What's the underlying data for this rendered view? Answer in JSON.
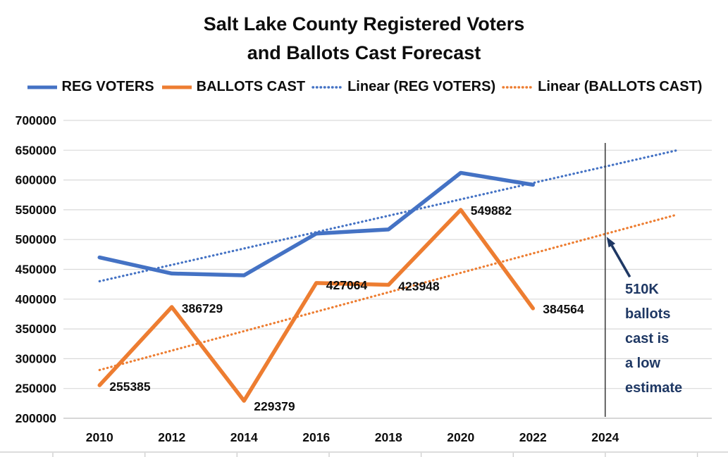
{
  "title": {
    "line1": "Salt Lake County Registered Voters",
    "line2": "and Ballots Cast Forecast"
  },
  "legend": [
    {
      "label": "REG VOTERS",
      "color": "#4472C4",
      "style": "solid"
    },
    {
      "label": "BALLOTS CAST",
      "color": "#ED7D31",
      "style": "solid"
    },
    {
      "label": "Linear (REG VOTERS)",
      "color": "#4472C4",
      "style": "dotted"
    },
    {
      "label": "Linear (BALLOTS CAST)",
      "color": "#ED7D31",
      "style": "dotted"
    }
  ],
  "annotation": {
    "text": "510K\nballots\ncast is\na low\nestimate",
    "color": "#1F3864"
  },
  "chart_data": {
    "type": "line",
    "categories": [
      2010,
      2012,
      2014,
      2016,
      2018,
      2020,
      2022,
      2024
    ],
    "series": [
      {
        "name": "REG VOTERS",
        "color": "#4472C4",
        "values": [
          470000,
          443000,
          440000,
          510000,
          517000,
          612000,
          592000
        ],
        "data_labels": false
      },
      {
        "name": "BALLOTS CAST",
        "color": "#ED7D31",
        "values": [
          255385,
          386729,
          229379,
          427064,
          423948,
          549882,
          384564
        ],
        "data_labels": true
      }
    ],
    "trendlines": [
      {
        "name": "Linear (REG VOTERS)",
        "color": "#4472C4",
        "x_start": 2010,
        "x_end": 2026,
        "value_start": 430000,
        "value_end": 650000
      },
      {
        "name": "Linear (BALLOTS CAST)",
        "color": "#ED7D31",
        "x_start": 2010,
        "x_end": 2026,
        "value_start": 281000,
        "value_end": 542000
      }
    ],
    "vertical_marker": {
      "x": 2024,
      "color": "#404040"
    },
    "yticks": [
      200000,
      250000,
      300000,
      350000,
      400000,
      450000,
      500000,
      550000,
      600000,
      650000,
      700000
    ],
    "ylim": [
      200000,
      700000
    ],
    "ytick_step": 50000,
    "grid": true,
    "legend_position": "top",
    "grid_color": "#D9D9D9",
    "axis_line_color": "#BFBFBF",
    "text_color": "#0d0d0d"
  }
}
